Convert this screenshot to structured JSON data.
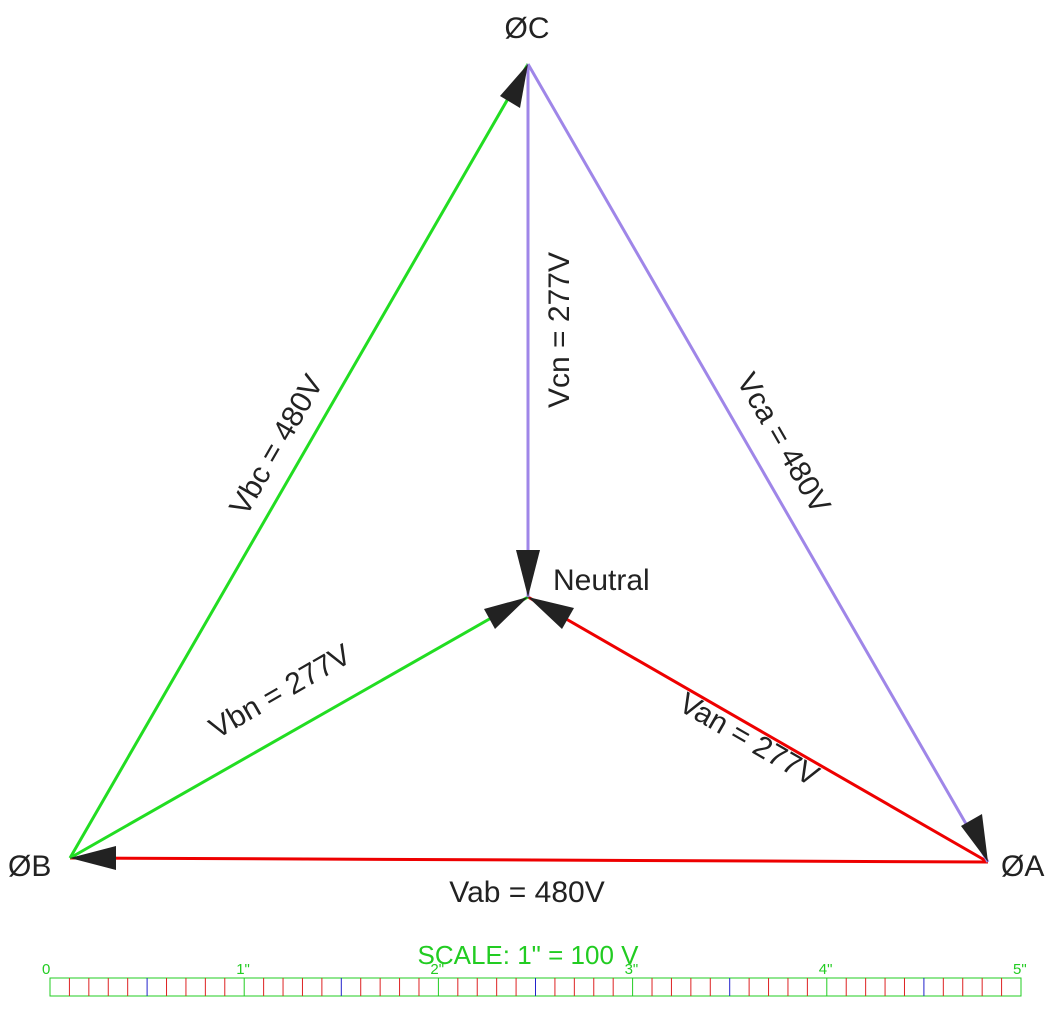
{
  "diagram": {
    "nodes": {
      "phase_a": "ØA",
      "phase_b": "ØB",
      "phase_c": "ØC",
      "neutral": "Neutral"
    },
    "vectors": {
      "vab": "Vab = 480V",
      "vbc": "Vbc = 480V",
      "vca": "Vca = 480V",
      "van": "Van = 277V",
      "vbn": "Vbn = 277V",
      "vcn": "Vcn = 277V"
    },
    "colors": {
      "red": "#ee0000",
      "green": "#22dd22",
      "purple": "#9f86e8",
      "arrow": "#222222"
    }
  },
  "scale": {
    "title": "SCALE: 1\" = 100 V",
    "labels": [
      "0",
      "1\"",
      "2\"",
      "3\"",
      "4\"",
      "5\""
    ],
    "colors": {
      "frame": "#22cc22",
      "minor": "#dd2222",
      "major": "#2222cc"
    }
  }
}
